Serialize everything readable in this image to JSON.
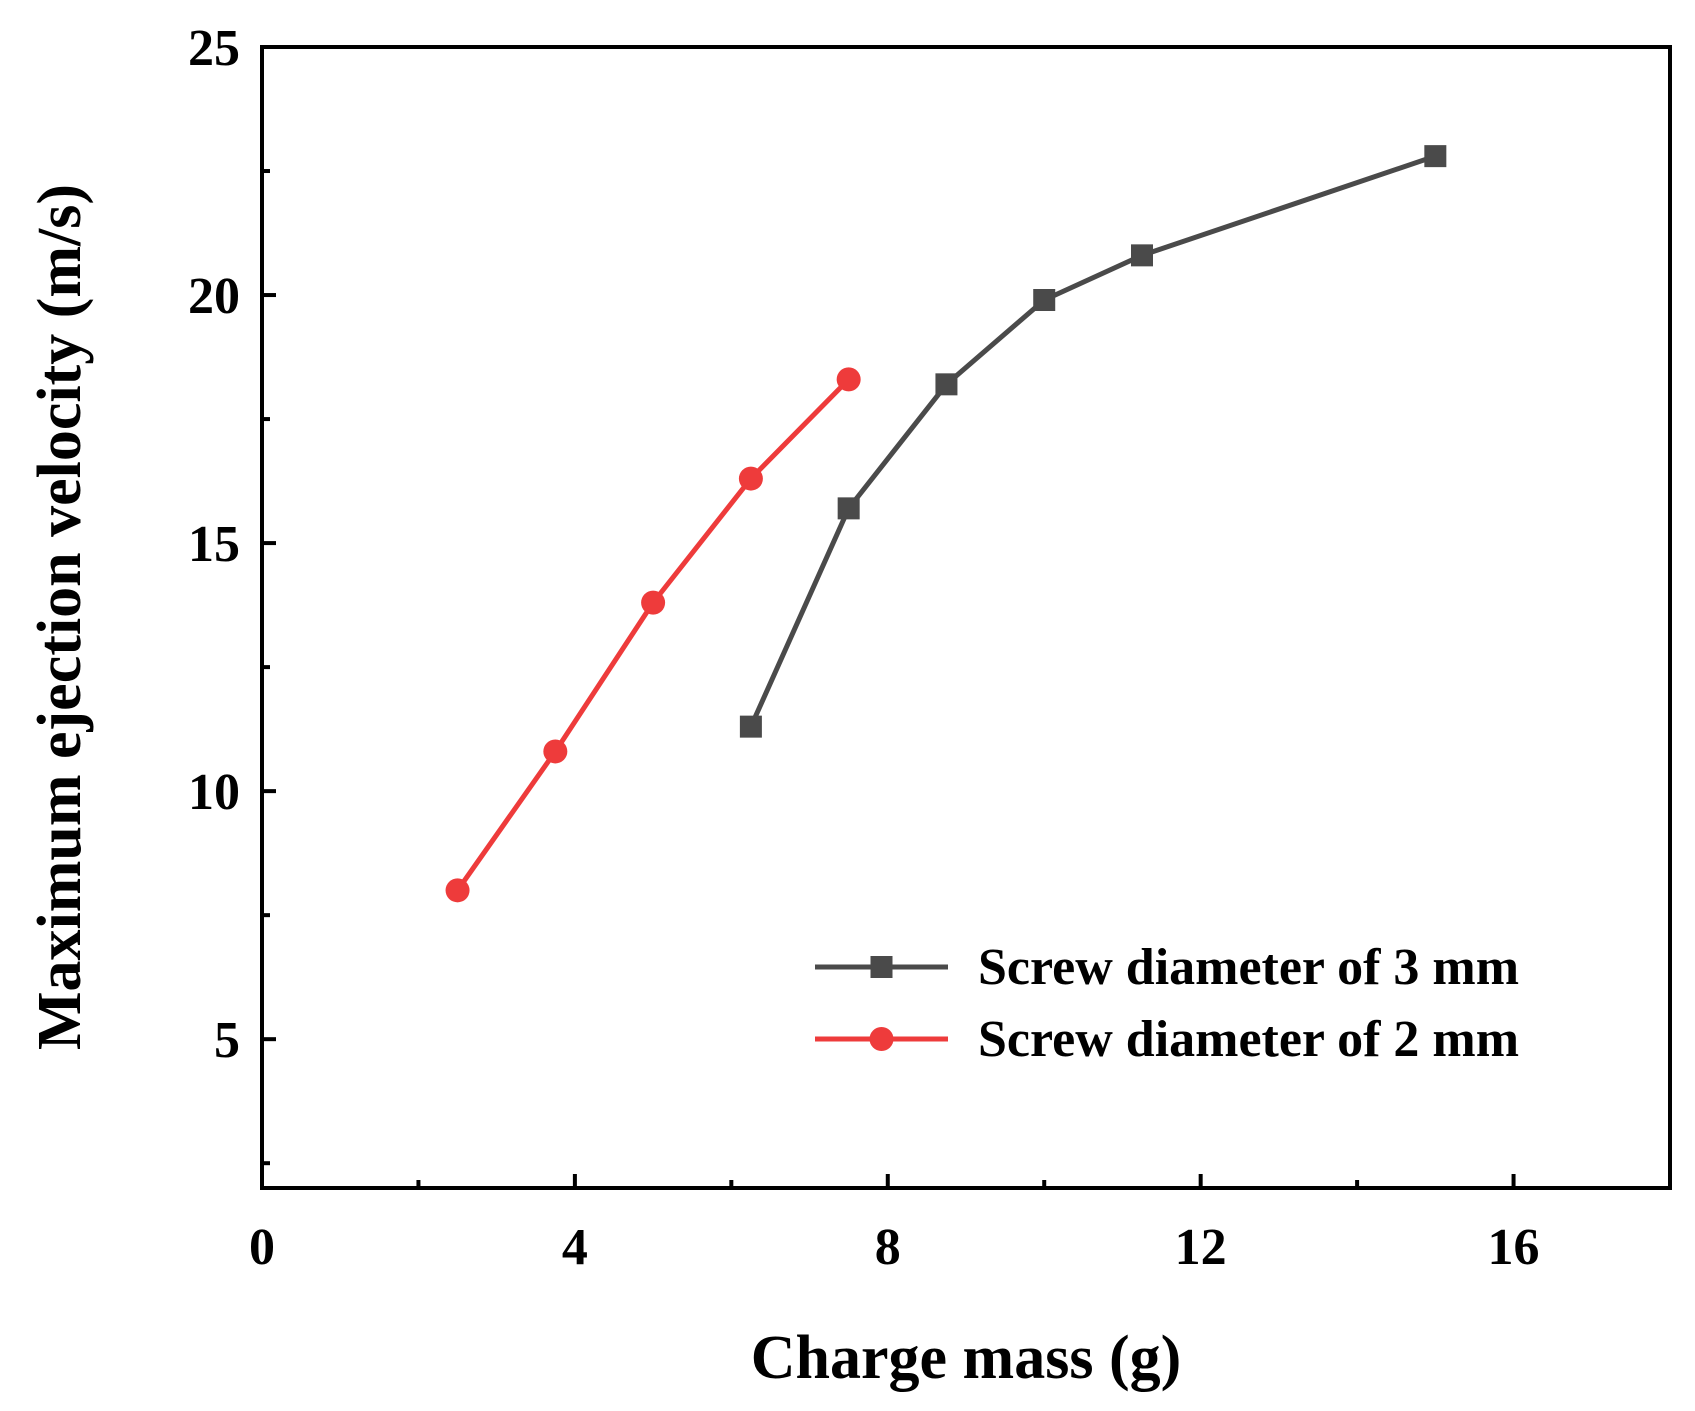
{
  "chart_data": {
    "type": "line",
    "title": "",
    "xlabel": "Charge mass (g)",
    "ylabel": "Maximum ejection velocity (m/s)",
    "xlim": [
      0,
      18
    ],
    "ylim": [
      2,
      25
    ],
    "x_ticks": [
      "0",
      "4",
      "8",
      "12",
      "16"
    ],
    "y_ticks": [
      "5",
      "10",
      "15",
      "20",
      "25"
    ],
    "grid": false,
    "legend_position": "bottom-right",
    "series": [
      {
        "name": "Screw diameter of 3 mm",
        "color": "#4a4a4a",
        "marker": "square",
        "x": [
          6.25,
          7.5,
          8.75,
          10.0,
          11.25,
          15.0
        ],
        "y": [
          11.3,
          15.7,
          18.2,
          19.9,
          20.8,
          22.8
        ]
      },
      {
        "name": "Screw diameter of 2 mm",
        "color": "#ee3b3b",
        "marker": "circle",
        "x": [
          2.5,
          3.75,
          5.0,
          6.25,
          7.5
        ],
        "y": [
          8.0,
          10.8,
          13.8,
          16.3,
          18.3
        ]
      }
    ]
  }
}
